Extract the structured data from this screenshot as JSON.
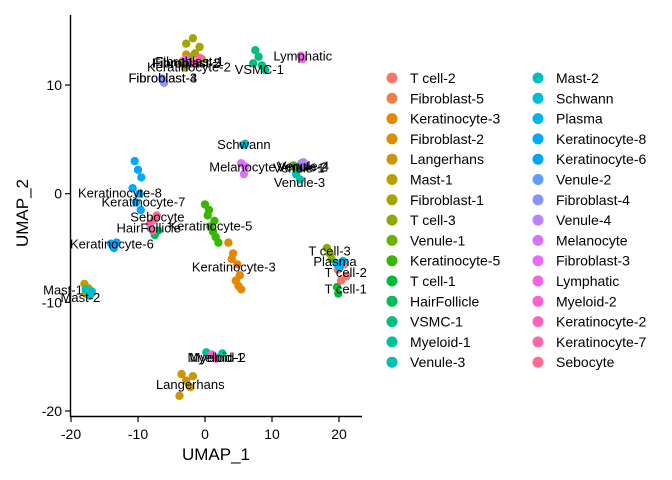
{
  "chart_data": {
    "type": "scatter",
    "title": "",
    "xlabel": "UMAP_1",
    "ylabel": "UMAP_2",
    "xlim": [
      -20.3,
      23.5
    ],
    "ylim": [
      -20.5,
      16.5
    ],
    "xticks": [
      -20,
      -10,
      0,
      10,
      20
    ],
    "yticks": [
      -20,
      -10,
      0,
      10
    ],
    "xtick_labels": [
      "-20",
      "-10",
      "0",
      "10",
      "20"
    ],
    "ytick_labels": [
      "-20",
      "-10",
      "0",
      "10"
    ],
    "grid": false,
    "legend_position": "right",
    "legend_columns": 2,
    "series": [
      {
        "name": "T cell-2",
        "color": "#F8766D",
        "x": [
          19.8,
          20.3,
          20.8,
          21.1
        ],
        "y": [
          -7.0,
          -8.0,
          -6.5,
          -7.6
        ],
        "label_pos": [
          21.0,
          -7.3
        ]
      },
      {
        "name": "Fibroblast-5",
        "color": "#EF7F49",
        "x": [
          -2.5,
          -1.8,
          -3.0
        ],
        "y": [
          12.6,
          12.0,
          12.3
        ],
        "label_pos": [
          -2.7,
          12.0
        ]
      },
      {
        "name": "Keratinocyte-3",
        "color": "#E58700",
        "x": [
          3.5,
          4.2,
          4.8,
          5.2,
          5.0,
          4.0,
          4.6,
          5.4
        ],
        "y": [
          -4.5,
          -5.5,
          -6.5,
          -7.5,
          -8.5,
          -6.0,
          -8.0,
          -8.8
        ],
        "label_pos": [
          4.3,
          -6.8
        ]
      },
      {
        "name": "Fibroblast-2",
        "color": "#D89000",
        "x": [
          -2.8,
          -2.2,
          -3.3
        ],
        "y": [
          12.8,
          12.4,
          12.2
        ],
        "label_pos": [
          -2.8,
          12.0
        ]
      },
      {
        "name": "Langerhans",
        "color": "#C99800",
        "x": [
          -3.5,
          -2.8,
          -2.2,
          -1.8,
          -3.8
        ],
        "y": [
          -16.6,
          -17.2,
          -17.8,
          -16.8,
          -18.6
        ],
        "label_pos": [
          -2.2,
          -17.6
        ]
      },
      {
        "name": "Mast-1",
        "color": "#B79F00",
        "x": [
          -18.0,
          -17.4,
          -17.8
        ],
        "y": [
          -8.3,
          -8.7,
          -9.2
        ],
        "label_pos": [
          -21.2,
          -8.9
        ]
      },
      {
        "name": "Fibroblast-1",
        "color": "#A3A500",
        "x": [
          -3.5,
          -2.5,
          -1.5,
          -0.5,
          -2.8,
          -1.8,
          -0.8,
          -3.0
        ],
        "y": [
          12.0,
          12.6,
          12.9,
          12.4,
          13.8,
          14.3,
          13.5,
          11.6
        ],
        "label_pos": [
          -2.3,
          12.1
        ]
      },
      {
        "name": "T cell-3",
        "color": "#8BAB00",
        "x": [
          18.2,
          18.6,
          18.9
        ],
        "y": [
          -5.0,
          -5.5,
          -6.0
        ],
        "label_pos": [
          18.6,
          -5.3
        ]
      },
      {
        "name": "Venule-1",
        "color": "#6BB100",
        "x": [
          13.2,
          13.8,
          14.4
        ],
        "y": [
          2.6,
          2.2,
          2.8
        ],
        "label_pos": [
          14.0,
          2.3
        ]
      },
      {
        "name": "Keratinocyte-5",
        "color": "#39B600",
        "x": [
          0.0,
          0.4,
          0.8,
          1.2,
          1.6,
          2.0,
          0.6,
          1.4
        ],
        "y": [
          -1.0,
          -2.0,
          -3.0,
          -3.5,
          -4.0,
          -4.5,
          -1.5,
          -2.5
        ],
        "label_pos": [
          0.8,
          -3.0
        ]
      },
      {
        "name": "T cell-1",
        "color": "#00BA38",
        "x": [
          19.7,
          19.9
        ],
        "y": [
          -8.6,
          -9.2
        ],
        "label_pos": [
          21.0,
          -8.8
        ]
      },
      {
        "name": "HairFollicle",
        "color": "#00BD5C",
        "x": [
          -8.1,
          -7.5,
          -7.0
        ],
        "y": [
          -3.2,
          -3.8,
          -3.4
        ],
        "label_pos": [
          -8.4,
          -3.2
        ]
      },
      {
        "name": "VSMC-1",
        "color": "#00BF7D",
        "x": [
          7.5,
          8.0,
          8.5,
          7.2,
          9.0
        ],
        "y": [
          13.2,
          12.6,
          11.8,
          12.0,
          11.4
        ],
        "label_pos": [
          8.1,
          11.4
        ]
      },
      {
        "name": "Myeloid-1",
        "color": "#00C098",
        "x": [
          0.2,
          1.0,
          1.8,
          2.6
        ],
        "y": [
          -14.6,
          -14.9,
          -15.1,
          -14.7
        ],
        "label_pos": [
          1.6,
          -15.1
        ]
      },
      {
        "name": "Venule-3",
        "color": "#00C0B2",
        "x": [
          13.6,
          14.2
        ],
        "y": [
          1.8,
          1.3
        ],
        "label_pos": [
          14.1,
          1.0
        ]
      },
      {
        "name": "Mast-2",
        "color": "#00BFC4",
        "x": [
          -17.8,
          -17.2,
          -16.9
        ],
        "y": [
          -8.8,
          -9.4,
          -9.0
        ],
        "label_pos": [
          -18.6,
          -9.6
        ]
      },
      {
        "name": "Schwann",
        "color": "#00BBDA",
        "x": [
          5.7,
          6.0
        ],
        "y": [
          4.5,
          4.6
        ],
        "label_pos": [
          5.8,
          4.5
        ]
      },
      {
        "name": "Plasma",
        "color": "#00B4EF",
        "x": [
          19.6,
          20.1,
          20.6
        ],
        "y": [
          -6.4,
          -6.8,
          -6.2
        ],
        "label_pos": [
          19.4,
          -6.3
        ]
      },
      {
        "name": "Keratinocyte-8",
        "color": "#00A9FF",
        "x": [
          -10.5,
          -10.0,
          -9.5,
          -10.8,
          -9.8,
          -10.3,
          -9.6
        ],
        "y": [
          3.0,
          2.2,
          1.5,
          0.5,
          0.0,
          -0.8,
          -1.5
        ],
        "label_pos": [
          -12.7,
          0.0
        ]
      },
      {
        "name": "Keratinocyte-6",
        "color": "#00A5FF",
        "x": [
          -14.0,
          -13.6,
          -13.2
        ],
        "y": [
          -4.6,
          -5.0,
          -4.5
        ],
        "label_pos": [
          -13.9,
          -4.7
        ]
      },
      {
        "name": "Venule-2",
        "color": "#619CFF",
        "x": [
          14.5,
          14.9
        ],
        "y": [
          2.8,
          2.6
        ],
        "label_pos": [
          14.5,
          2.4
        ]
      },
      {
        "name": "Fibroblast-4",
        "color": "#8B93FF",
        "x": [
          -6.4,
          -6.1
        ],
        "y": [
          10.6,
          10.2
        ],
        "label_pos": [
          -6.3,
          10.6
        ]
      },
      {
        "name": "Venule-4",
        "color": "#B983FF",
        "x": [
          14.7,
          15.1
        ],
        "y": [
          2.9,
          2.5
        ],
        "label_pos": [
          14.7,
          2.5
        ]
      },
      {
        "name": "Melanocyte",
        "color": "#DB72FB",
        "x": [
          5.4,
          6.0,
          5.8
        ],
        "y": [
          2.8,
          2.5,
          1.8
        ],
        "label_pos": [
          5.6,
          2.4
        ]
      },
      {
        "name": "Fibroblast-3",
        "color": "#E96AF8",
        "x": [
          -2.9,
          -2.3
        ],
        "y": [
          12.4,
          12.0
        ],
        "label_pos": [
          -6.3,
          10.6
        ]
      },
      {
        "name": "Lymphatic",
        "color": "#F564E3",
        "x": [
          14.3,
          14.6
        ],
        "y": [
          12.7,
          12.4
        ],
        "label_pos": [
          14.6,
          12.6
        ]
      },
      {
        "name": "Myeloid-2",
        "color": "#FD61D1",
        "x": [
          1.0,
          1.6
        ],
        "y": [
          -14.8,
          -15.2
        ],
        "label_pos": [
          1.9,
          -15.1
        ]
      },
      {
        "name": "Keratinocyte-2",
        "color": "#FF62BC",
        "x": [
          -1.4,
          -0.8
        ],
        "y": [
          12.0,
          12.5
        ],
        "label_pos": [
          -2.4,
          11.6
        ]
      },
      {
        "name": "Keratinocyte-7",
        "color": "#FF66A8",
        "x": [
          -8.2,
          -7.8
        ],
        "y": [
          -2.8,
          -3.4
        ],
        "label_pos": [
          -9.2,
          -0.8
        ]
      },
      {
        "name": "Sebocyte",
        "color": "#FF6C91",
        "x": [
          -7.6,
          -7.2
        ],
        "y": [
          -2.4,
          -2.0
        ],
        "label_pos": [
          -7.1,
          -2.2
        ]
      }
    ]
  }
}
